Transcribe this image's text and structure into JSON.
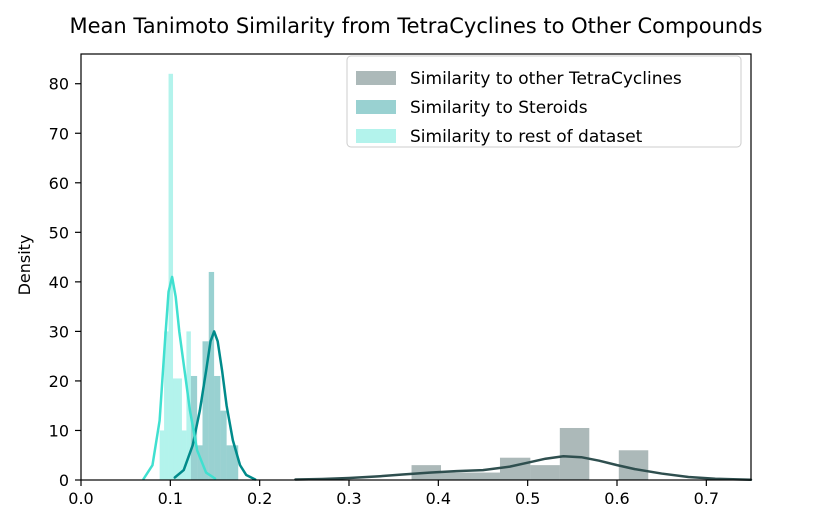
{
  "chart_data": {
    "type": "histogram-kde",
    "title": "Mean Tanimoto Similarity from TetraCyclines to Other Compounds",
    "xlabel": "",
    "ylabel": "Density",
    "xlim": [
      0.0,
      0.75
    ],
    "ylim": [
      0,
      86
    ],
    "x_ticks": [
      0.0,
      0.1,
      0.2,
      0.3,
      0.4,
      0.5,
      0.6,
      0.7
    ],
    "x_tick_labels": [
      "0.0",
      "0.1",
      "0.2",
      "0.3",
      "0.4",
      "0.5",
      "0.6",
      "0.7"
    ],
    "y_ticks": [
      0,
      10,
      20,
      30,
      40,
      50,
      60,
      70,
      80
    ],
    "y_tick_labels": [
      "0",
      "10",
      "20",
      "30",
      "40",
      "50",
      "60",
      "70",
      "80"
    ],
    "grid": false,
    "legend_position": "top-right",
    "series": [
      {
        "name": "Similarity to other TetraCyclines",
        "color": "#2f4f4f",
        "bar_opacity": 0.4,
        "bins": [
          {
            "x0": 0.37,
            "x1": 0.403,
            "h": 3
          },
          {
            "x0": 0.403,
            "x1": 0.436,
            "h": 1.5
          },
          {
            "x0": 0.436,
            "x1": 0.469,
            "h": 1.5
          },
          {
            "x0": 0.469,
            "x1": 0.503,
            "h": 4.5
          },
          {
            "x0": 0.503,
            "x1": 0.536,
            "h": 3
          },
          {
            "x0": 0.536,
            "x1": 0.569,
            "h": 10.5
          },
          {
            "x0": 0.569,
            "x1": 0.602,
            "h": 0
          },
          {
            "x0": 0.602,
            "x1": 0.635,
            "h": 6
          }
        ],
        "kde": [
          [
            0.24,
            0.1
          ],
          [
            0.27,
            0.2
          ],
          [
            0.3,
            0.4
          ],
          [
            0.33,
            0.7
          ],
          [
            0.36,
            1.1
          ],
          [
            0.39,
            1.5
          ],
          [
            0.42,
            1.8
          ],
          [
            0.45,
            2.0
          ],
          [
            0.48,
            2.7
          ],
          [
            0.5,
            3.5
          ],
          [
            0.52,
            4.3
          ],
          [
            0.54,
            4.8
          ],
          [
            0.56,
            4.6
          ],
          [
            0.58,
            3.9
          ],
          [
            0.6,
            3.0
          ],
          [
            0.62,
            2.2
          ],
          [
            0.65,
            1.3
          ],
          [
            0.68,
            0.6
          ],
          [
            0.71,
            0.25
          ],
          [
            0.75,
            0.05
          ]
        ]
      },
      {
        "name": "Similarity to Steroids",
        "color": "#008b8b",
        "bar_opacity": 0.4,
        "bins": [
          {
            "x0": 0.123,
            "x1": 0.13,
            "h": 21
          },
          {
            "x0": 0.13,
            "x1": 0.136,
            "h": 7
          },
          {
            "x0": 0.136,
            "x1": 0.143,
            "h": 28
          },
          {
            "x0": 0.143,
            "x1": 0.149,
            "h": 42
          },
          {
            "x0": 0.149,
            "x1": 0.156,
            "h": 21
          },
          {
            "x0": 0.156,
            "x1": 0.163,
            "h": 14
          },
          {
            "x0": 0.163,
            "x1": 0.176,
            "h": 7
          }
        ],
        "kde": [
          [
            0.105,
            0.5
          ],
          [
            0.115,
            2
          ],
          [
            0.125,
            7
          ],
          [
            0.133,
            14
          ],
          [
            0.14,
            22
          ],
          [
            0.145,
            28
          ],
          [
            0.149,
            30
          ],
          [
            0.153,
            28
          ],
          [
            0.158,
            22
          ],
          [
            0.163,
            15
          ],
          [
            0.17,
            8
          ],
          [
            0.178,
            3
          ],
          [
            0.185,
            1
          ],
          [
            0.195,
            0.1
          ]
        ]
      },
      {
        "name": "Similarity to rest of dataset",
        "color": "#40e0d0",
        "bar_opacity": 0.4,
        "bins": [
          {
            "x0": 0.088,
            "x1": 0.093,
            "h": 10
          },
          {
            "x0": 0.093,
            "x1": 0.098,
            "h": 30
          },
          {
            "x0": 0.098,
            "x1": 0.103,
            "h": 82
          },
          {
            "x0": 0.103,
            "x1": 0.108,
            "h": 20.5
          },
          {
            "x0": 0.108,
            "x1": 0.113,
            "h": 20.5
          },
          {
            "x0": 0.113,
            "x1": 0.118,
            "h": 10
          },
          {
            "x0": 0.118,
            "x1": 0.123,
            "h": 30
          }
        ],
        "kde": [
          [
            0.07,
            0.2
          ],
          [
            0.08,
            3
          ],
          [
            0.088,
            12
          ],
          [
            0.094,
            28
          ],
          [
            0.098,
            38
          ],
          [
            0.102,
            41
          ],
          [
            0.106,
            37
          ],
          [
            0.11,
            30
          ],
          [
            0.116,
            22
          ],
          [
            0.122,
            14
          ],
          [
            0.13,
            6
          ],
          [
            0.14,
            1.5
          ],
          [
            0.15,
            0.3
          ]
        ]
      }
    ]
  }
}
